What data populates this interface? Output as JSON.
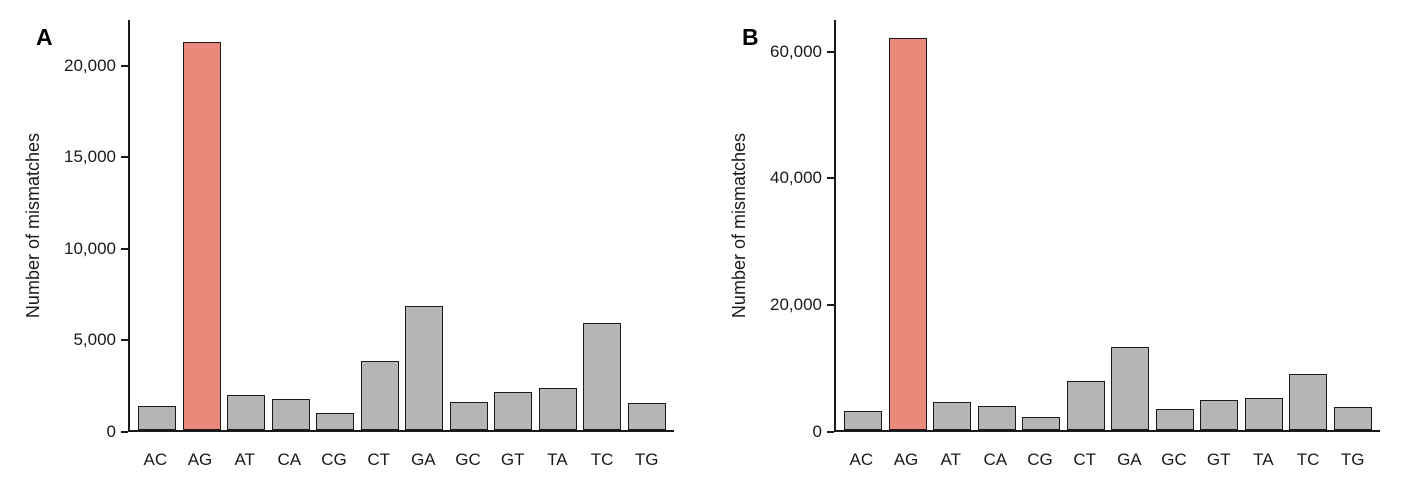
{
  "chart_data": [
    {
      "type": "bar",
      "panel_label": "A",
      "ylabel": "Number of mismatches",
      "xlabel": "",
      "categories": [
        "AC",
        "AG",
        "AT",
        "CA",
        "CG",
        "CT",
        "GA",
        "GC",
        "GT",
        "TA",
        "TC",
        "TG"
      ],
      "values": [
        1300,
        21300,
        1900,
        1700,
        950,
        3800,
        6800,
        1550,
        2100,
        2300,
        5900,
        1500
      ],
      "highlight_category": "AG",
      "ylim": [
        0,
        22500
      ],
      "yticks": [
        0,
        5000,
        10000,
        15000,
        20000
      ],
      "ytick_labels": [
        "0",
        "5,000",
        "10,000",
        "15,000",
        "20,000"
      ],
      "grid": "off",
      "legend": "none"
    },
    {
      "type": "bar",
      "panel_label": "B",
      "ylabel": "Number of mismatches",
      "xlabel": "",
      "categories": [
        "AC",
        "AG",
        "AT",
        "CA",
        "CG",
        "CT",
        "GA",
        "GC",
        "GT",
        "TA",
        "TC",
        "TG"
      ],
      "values": [
        3000,
        62200,
        4400,
        3800,
        2000,
        7700,
        13100,
        3400,
        4700,
        5100,
        8900,
        3600
      ],
      "highlight_category": "AG",
      "ylim": [
        0,
        65000
      ],
      "yticks": [
        0,
        20000,
        40000,
        60000
      ],
      "ytick_labels": [
        "0",
        "20,000",
        "40,000",
        "60,000"
      ],
      "grid": "off",
      "legend": "none"
    }
  ],
  "colors": {
    "bar_fill": "#b5b5b5",
    "highlight_fill": "#e8897b",
    "bar_stroke": "#1a1a1a"
  }
}
